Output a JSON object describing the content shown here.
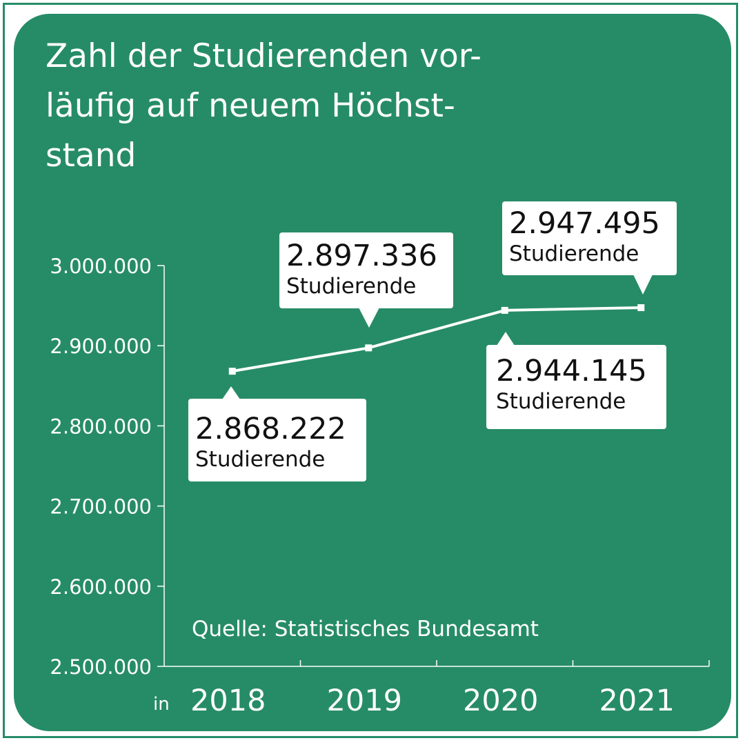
{
  "title_lines": [
    "Zahl der Studierenden vor-",
    "läufig auf neuem Höchst-",
    "stand"
  ],
  "source": "Quelle: Statistisches Bundesamt",
  "x_unit_prefix": "in",
  "colors": {
    "background": "#268c67",
    "line": "#ffffff",
    "callout": "#ffffff",
    "callout_text": "#111111"
  },
  "chart_data": {
    "type": "line",
    "categories": [
      "2018",
      "2019",
      "2020",
      "2021"
    ],
    "values": [
      2868222,
      2897336,
      2944145,
      2947495
    ],
    "ylim": [
      2500000,
      3000000
    ],
    "yticks": [
      2500000,
      2600000,
      2700000,
      2800000,
      2900000,
      3000000
    ],
    "ytick_labels": [
      "2.500.000",
      "2.600.000",
      "2.700.000",
      "2.800.000",
      "2.900.000",
      "3.000.000"
    ],
    "annotations": [
      {
        "value": "2.868.222",
        "label": "Studierende"
      },
      {
        "value": "2.897.336",
        "label": "Studierende"
      },
      {
        "value": "2.944.145",
        "label": "Studierende"
      },
      {
        "value": "2.947.495",
        "label": "Studierende"
      }
    ],
    "grid": false,
    "legend": "none"
  }
}
